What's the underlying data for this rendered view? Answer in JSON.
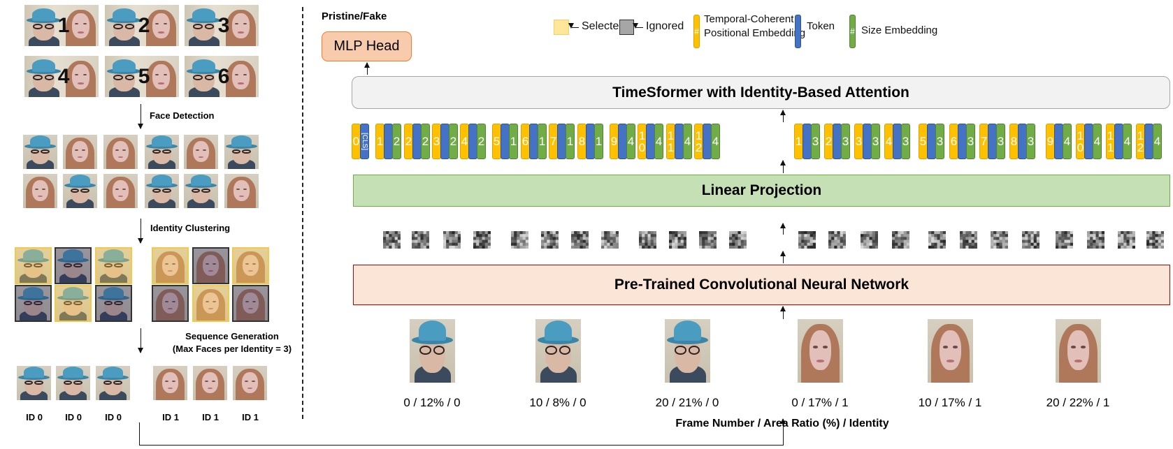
{
  "left_panel": {
    "frame_numbers": [
      "1",
      "2",
      "3",
      "4",
      "5",
      "6"
    ],
    "detected_faces": [
      "man",
      "woman",
      "woman",
      "man",
      "woman",
      "man",
      "woman",
      "man",
      "woman",
      "man",
      "man",
      "woman"
    ],
    "steps": {
      "face_detection": "Face Detection",
      "identity_clustering": "Identity Clustering",
      "sequence_generation": "Sequence Generation",
      "sequence_generation_note": "(Max Faces per Identity = 3)"
    },
    "clusters": {
      "identity_0": [
        "selected",
        "ignored",
        "selected",
        "ignored",
        "selected",
        "ignored"
      ],
      "identity_1": [
        "selected",
        "ignored",
        "selected",
        "ignored",
        "selected",
        "ignored"
      ]
    },
    "sequence_ids": [
      "ID 0",
      "ID 0",
      "ID 0",
      "ID 1",
      "ID 1",
      "ID 1"
    ]
  },
  "legend": {
    "selected": "Selected",
    "ignored": "Ignored",
    "temporal_line1": "Temporal-Coherent",
    "temporal_line2": "Positional Embedding",
    "token": "Token",
    "size": "Size Embedding",
    "hash": "#",
    "colors": {
      "selected": "#ffe699",
      "ignored": "#a6a6a6",
      "temporal": "#ffc000",
      "token": "#4472c4",
      "size": "#70ad47"
    }
  },
  "output_label": "Pristine/Fake",
  "mlp_head": "MLP Head",
  "timesformer": "TimeSformer with Identity-Based Attention",
  "linear_projection": "Linear Projection",
  "cnn": "Pre-Trained Convolutional Neural Network",
  "cls": {
    "position": "0",
    "label": "[CLS]"
  },
  "tokens_left": [
    [
      "1",
      "2"
    ],
    [
      "2",
      "2"
    ],
    [
      "3",
      "2"
    ],
    [
      "4",
      "2"
    ],
    [
      "5",
      "1"
    ],
    [
      "6",
      "1"
    ],
    [
      "7",
      "1"
    ],
    [
      "8",
      "1"
    ],
    [
      "9",
      "4"
    ],
    [
      "10",
      "4"
    ],
    [
      "11",
      "4"
    ],
    [
      "12",
      "4"
    ]
  ],
  "tokens_right": [
    [
      "1",
      "3"
    ],
    [
      "2",
      "3"
    ],
    [
      "3",
      "3"
    ],
    [
      "4",
      "3"
    ],
    [
      "5",
      "3"
    ],
    [
      "6",
      "3"
    ],
    [
      "7",
      "3"
    ],
    [
      "8",
      "3"
    ],
    [
      "9",
      "4"
    ],
    [
      "10",
      "4"
    ],
    [
      "11",
      "4"
    ],
    [
      "12",
      "4"
    ]
  ],
  "input_faces": [
    {
      "type": "man",
      "label": "0 / 12% / 0"
    },
    {
      "type": "man",
      "label": "10  / 8% / 0"
    },
    {
      "type": "man",
      "label": "20 / 21% / 0"
    },
    {
      "type": "woman",
      "label": "0 / 17% / 1"
    },
    {
      "type": "woman",
      "label": "10 / 17% / 1"
    },
    {
      "type": "woman",
      "label": "20 / 22% / 1"
    }
  ],
  "caption": "Frame Number / Area Ratio (%) / Identity"
}
